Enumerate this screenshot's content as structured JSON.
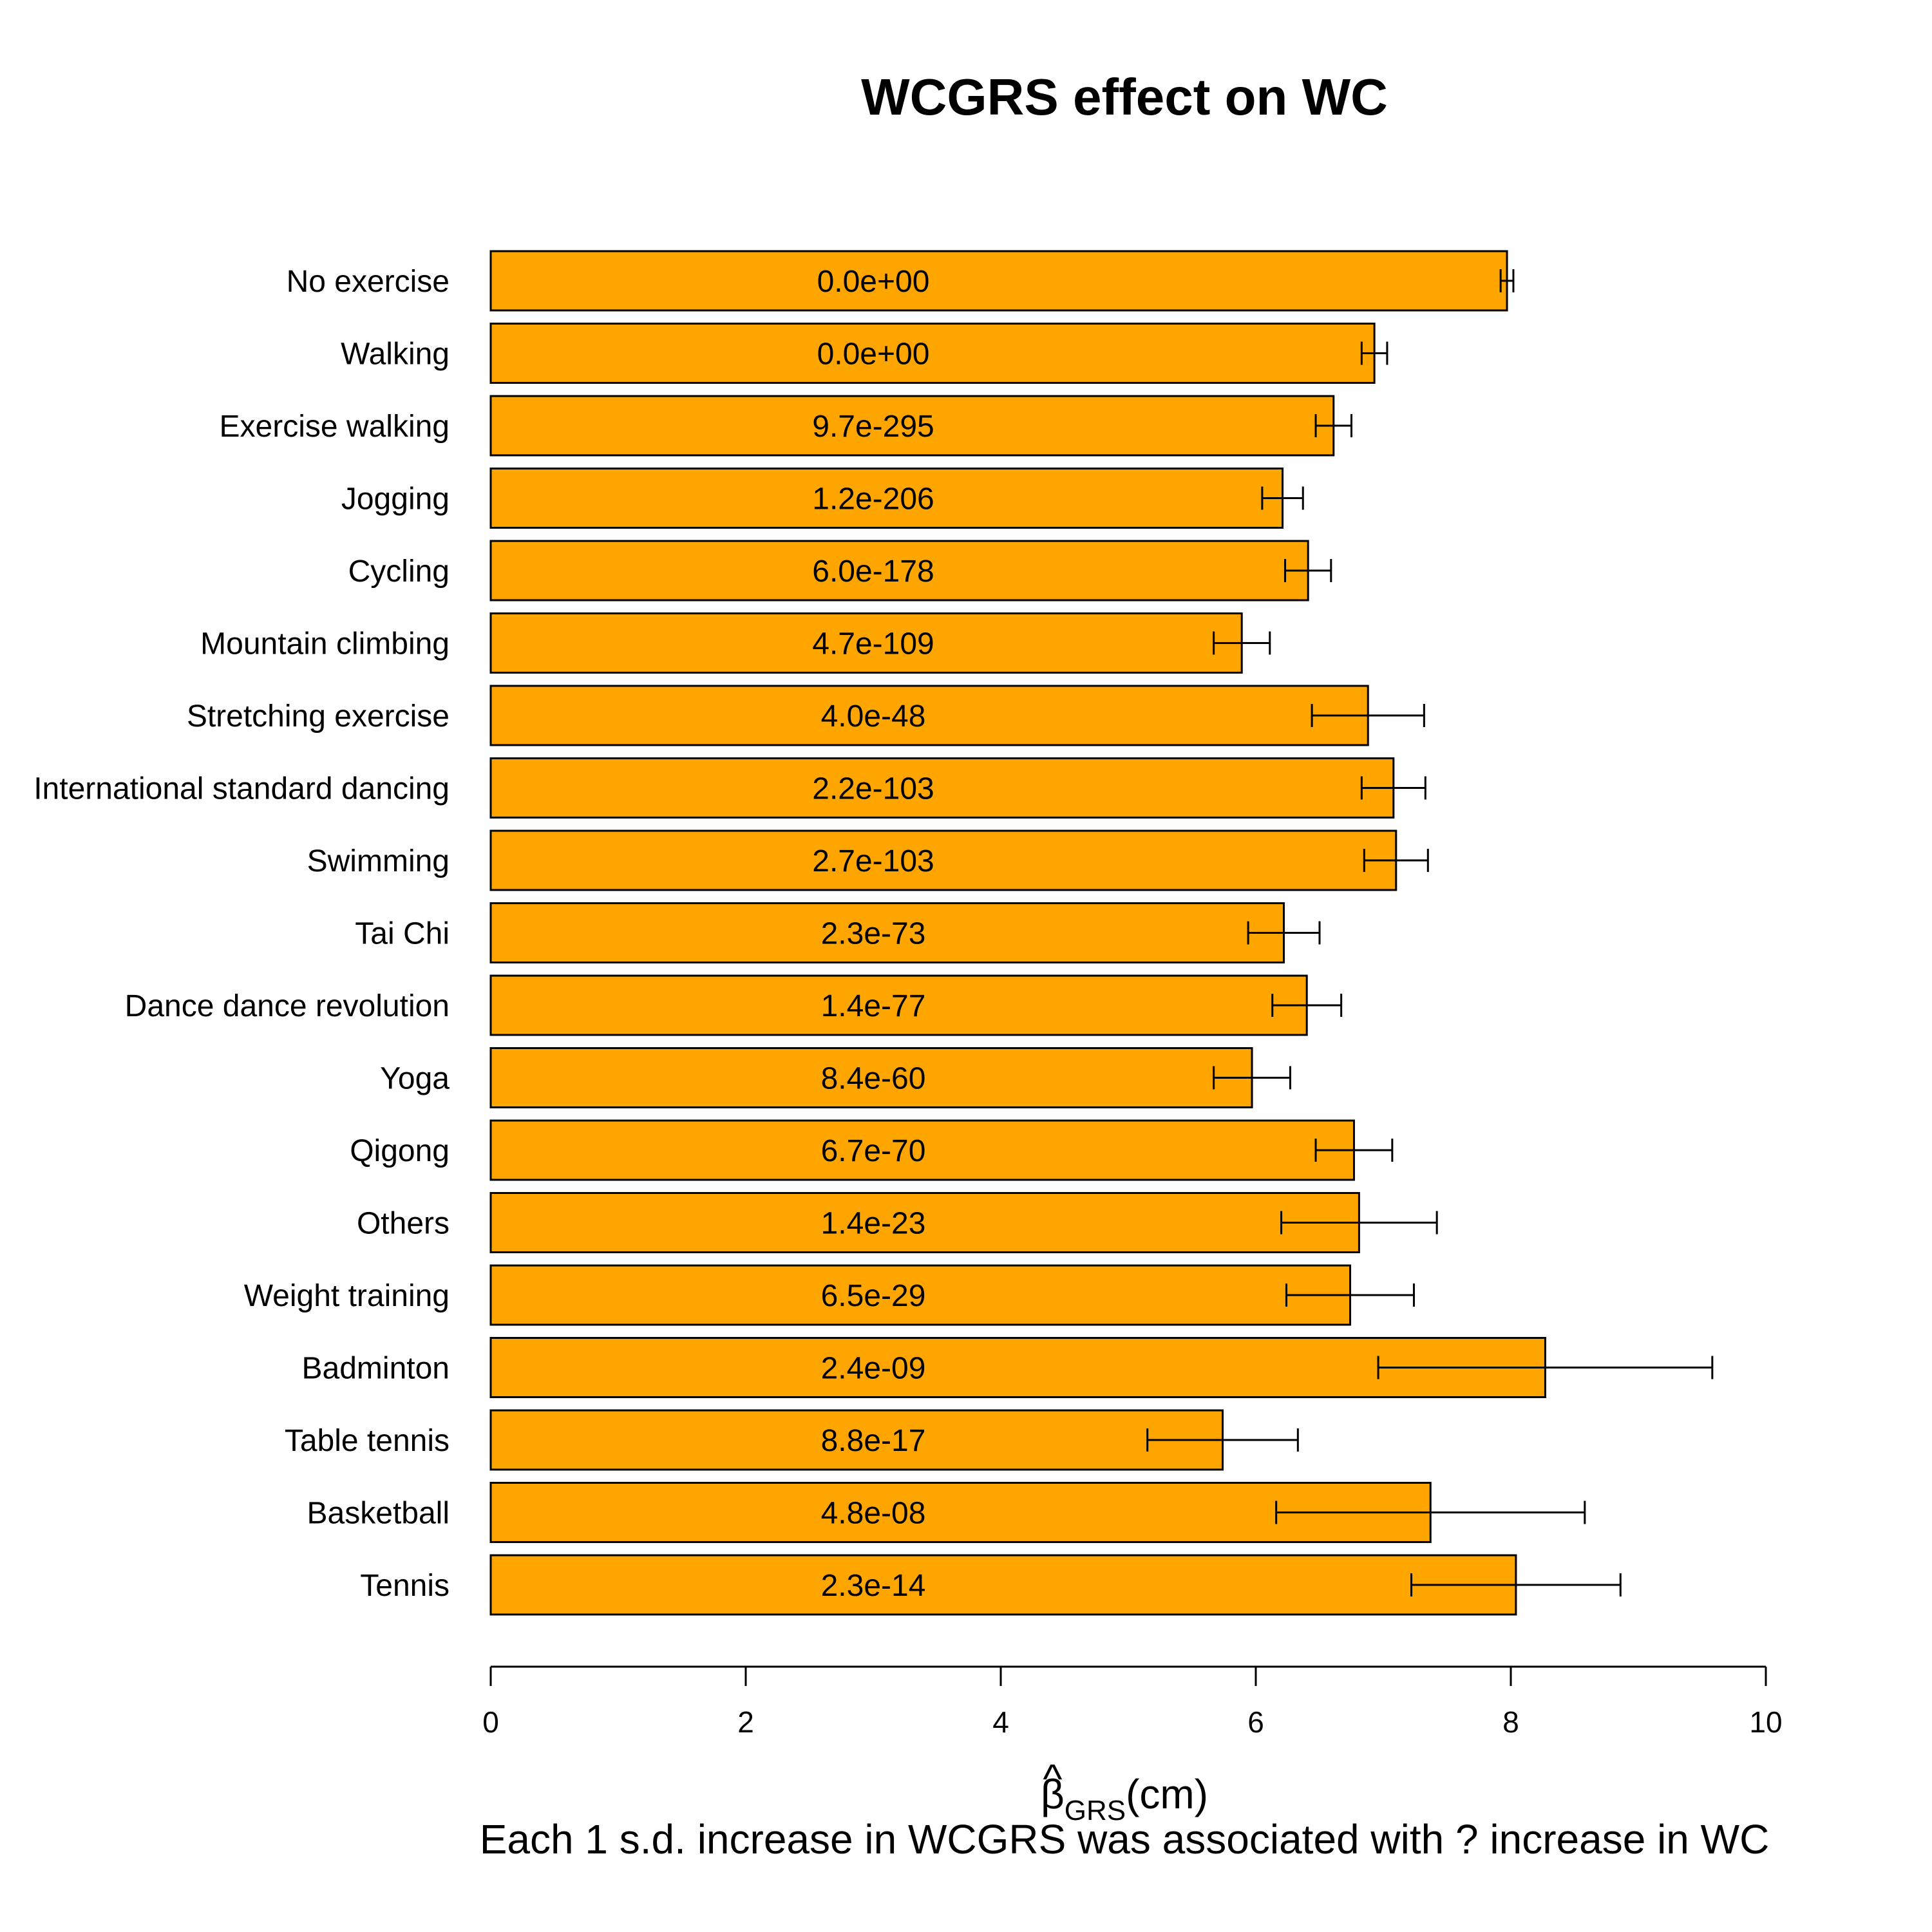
{
  "colors": {
    "bar": "#FFA500",
    "stroke": "#000000"
  },
  "chart_data": {
    "type": "bar",
    "orientation": "horizontal",
    "title": "WCGRS effect on WC",
    "xlabel_symbol": "β",
    "xlabel_hat": "^",
    "xlabel_subscript": "GRS",
    "xlabel_unit": "(cm)",
    "subtitle": "Each 1 s.d. increase in WCGRS was associated with ? increase in WC",
    "xlim": [
      0,
      10
    ],
    "xticks": [
      "0",
      "2",
      "4",
      "6",
      "8",
      "10"
    ],
    "categories": [
      "No exercise",
      "Walking",
      "Exercise walking",
      "Jogging",
      "Cycling",
      "Mountain climbing",
      "Stretching exercise",
      "International standard dancing",
      "Swimming",
      "Tai Chi",
      "Dance dance revolution",
      "Yoga",
      "Qigong",
      "Others",
      "Weight training",
      "Badminton",
      "Table tennis",
      "Basketball",
      "Tennis"
    ],
    "values": [
      7.97,
      6.93,
      6.61,
      6.21,
      6.41,
      5.89,
      6.88,
      7.08,
      7.1,
      6.22,
      6.4,
      5.97,
      6.77,
      6.81,
      6.74,
      8.27,
      5.74,
      7.37,
      8.04
    ],
    "ci_lower": [
      7.92,
      6.83,
      6.47,
      6.05,
      6.23,
      5.67,
      6.44,
      6.83,
      6.85,
      5.94,
      6.13,
      5.67,
      6.47,
      6.2,
      6.24,
      6.96,
      5.15,
      6.16,
      7.22
    ],
    "ci_upper": [
      8.02,
      7.03,
      6.75,
      6.37,
      6.59,
      6.11,
      7.32,
      7.33,
      7.35,
      6.5,
      6.67,
      6.27,
      7.07,
      7.42,
      7.24,
      9.58,
      6.33,
      8.58,
      8.86
    ],
    "bar_labels": [
      "0.0e+00",
      "0.0e+00",
      "9.7e-295",
      "1.2e-206",
      "6.0e-178",
      "4.7e-109",
      "4.0e-48",
      "2.2e-103",
      "2.7e-103",
      "2.3e-73",
      "1.4e-77",
      "8.4e-60",
      "6.7e-70",
      "1.4e-23",
      "6.5e-29",
      "2.4e-09",
      "8.8e-17",
      "4.8e-08",
      "2.3e-14"
    ],
    "grid": false,
    "legend": "none"
  }
}
